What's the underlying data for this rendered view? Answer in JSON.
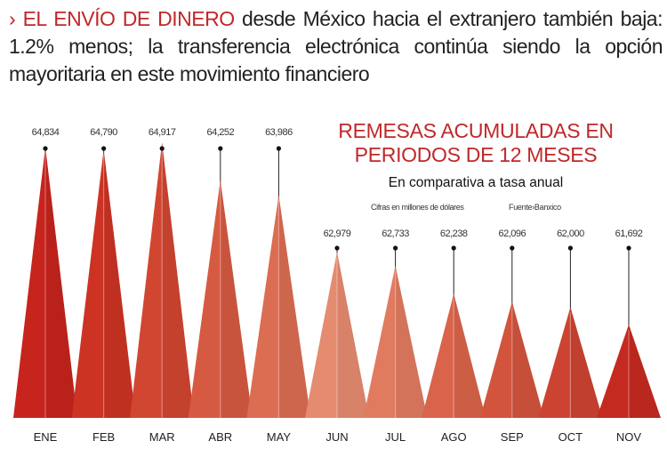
{
  "headline": {
    "highlight": "› EL ENVÍO DE DINERO",
    "text": " desde México hacia el extranjero también baja: 1.2% menos; la transferencia electrónica continúa siendo la opción mayoritaria en este movimiento financiero"
  },
  "chart_data": {
    "type": "bar",
    "mark_shape": "triangle",
    "title": "REMESAS ACUMULADAS EN PERIODOS DE 12 MESES",
    "subtitle": "En comparativa a tasa anual",
    "units_note": "Cifras en millones de dólares",
    "source": "Fuente›Banxico",
    "categories": [
      "ENE",
      "FEB",
      "MAR",
      "ABR",
      "MAY",
      "JUN",
      "JUL",
      "AGO",
      "SEP",
      "OCT",
      "NOV"
    ],
    "values": [
      64834,
      64790,
      64917,
      64252,
      63986,
      62979,
      62733,
      62238,
      62096,
      62000,
      61692
    ],
    "value_labels": [
      "64,834",
      "64,790",
      "64,917",
      "64,252",
      "63,986",
      "62,979",
      "62,733",
      "62,238",
      "62,096",
      "62,000",
      "61,692"
    ],
    "colors": [
      "#c6241c",
      "#cc3323",
      "#d14631",
      "#d65a41",
      "#db6d52",
      "#e58b70",
      "#e07b60",
      "#d9644b",
      "#d3543d",
      "#cd4331",
      "#c52a20"
    ],
    "ylim": [
      60040,
      64917
    ],
    "grid": false,
    "legend": "none"
  }
}
